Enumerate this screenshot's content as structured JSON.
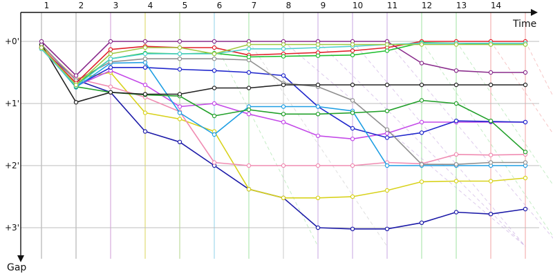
{
  "chart_data": {
    "type": "line",
    "xlabel": "Time",
    "ylabel": "Gap",
    "x_ticks": [
      "1",
      "2",
      "3",
      "4",
      "5",
      "6",
      "7",
      "8",
      "9",
      "10",
      "11",
      "12",
      "13",
      "14"
    ],
    "y_ticks": [
      "+0'",
      "+1'",
      "+2'",
      "+3'"
    ],
    "xlim": [
      0.3,
      15.2
    ],
    "ylim": [
      0,
      3.5
    ],
    "grid": true,
    "series": [
      {
        "color": "#1c1aa8",
        "x": [
          1,
          2,
          3,
          4,
          5,
          6,
          7,
          8,
          9,
          10,
          11,
          12,
          13,
          14,
          15
        ],
        "y": [
          0.1,
          0.62,
          0.82,
          1.45,
          1.62,
          2.0,
          2.38,
          2.52,
          3.0,
          3.02,
          3.02,
          2.92,
          2.75,
          2.78,
          2.7
        ]
      },
      {
        "color": "#d8d21c",
        "x": [
          1,
          2,
          3,
          4,
          5,
          6,
          7,
          8,
          9,
          10,
          11,
          12,
          13,
          14,
          15
        ],
        "y": [
          0.08,
          0.6,
          0.5,
          1.15,
          1.25,
          1.45,
          2.38,
          2.52,
          2.52,
          2.5,
          2.4,
          2.26,
          2.25,
          2.25,
          2.2
        ]
      },
      {
        "color": "#f08cb2",
        "x": [
          1,
          2,
          3,
          4,
          5,
          6,
          7,
          8,
          9,
          10,
          11,
          12,
          13,
          14,
          15
        ],
        "y": [
          0.1,
          0.6,
          0.73,
          0.9,
          1.13,
          1.95,
          2.0,
          2.0,
          2.0,
          2.0,
          1.95,
          1.97,
          1.82,
          1.83,
          1.82
        ]
      },
      {
        "color": "#c44ae8",
        "x": [
          1,
          2,
          3,
          4,
          5,
          6,
          7,
          8,
          9,
          10,
          11,
          12,
          13,
          14,
          15
        ],
        "y": [
          0.12,
          0.72,
          0.47,
          0.7,
          1.05,
          1.0,
          1.17,
          1.3,
          1.52,
          1.57,
          1.48,
          1.3,
          1.3,
          1.3,
          1.3
        ]
      },
      {
        "color": "#2027cc",
        "x": [
          1,
          2,
          3,
          4,
          5,
          6,
          7,
          8,
          9,
          10,
          11,
          12,
          13,
          14,
          15
        ],
        "y": [
          0.12,
          0.72,
          0.42,
          0.42,
          0.45,
          0.47,
          0.5,
          0.55,
          1.05,
          1.4,
          1.55,
          1.47,
          1.28,
          1.29,
          1.3
        ]
      },
      {
        "color": "#1e9ee3",
        "x": [
          1,
          2,
          3,
          4,
          5,
          6,
          7,
          8,
          9,
          10,
          11,
          12,
          13,
          14,
          15
        ],
        "y": [
          0.1,
          0.74,
          0.35,
          0.34,
          1.15,
          1.5,
          1.05,
          1.05,
          1.05,
          1.12,
          2.0,
          2.0,
          2.0,
          2.0,
          2.0
        ]
      },
      {
        "color": "#8f8f8f",
        "x": [
          1,
          2,
          3,
          4,
          5,
          6,
          7,
          8,
          9,
          10,
          11,
          12,
          13,
          14,
          15
        ],
        "y": [
          0.05,
          0.63,
          0.33,
          0.28,
          0.28,
          0.28,
          0.3,
          0.67,
          0.73,
          0.95,
          1.42,
          1.98,
          1.98,
          1.95,
          1.95
        ]
      },
      {
        "color": "#22a02a",
        "x": [
          1,
          2,
          3,
          4,
          5,
          6,
          7,
          8,
          9,
          10,
          11,
          12,
          13,
          14,
          15
        ],
        "y": [
          0.1,
          0.73,
          0.82,
          0.86,
          0.88,
          1.2,
          1.1,
          1.17,
          1.17,
          1.15,
          1.12,
          0.95,
          1.0,
          1.28,
          1.78
        ]
      },
      {
        "color": "#222222",
        "x": [
          1,
          2,
          3,
          4,
          5,
          6,
          7,
          8,
          9,
          10,
          11,
          12,
          13,
          14,
          15
        ],
        "y": [
          0.05,
          0.98,
          0.82,
          0.85,
          0.85,
          0.75,
          0.75,
          0.7,
          0.7,
          0.7,
          0.7,
          0.7,
          0.7,
          0.7,
          0.7
        ]
      },
      {
        "color": "#8a2c8c",
        "x": [
          1,
          2,
          3,
          4,
          5,
          6,
          7,
          8,
          9,
          10,
          11,
          12,
          13,
          14,
          15
        ],
        "y": [
          0.0,
          0.55,
          0.0,
          0.0,
          0.0,
          0.0,
          0.0,
          0.0,
          0.0,
          0.0,
          0.0,
          0.35,
          0.47,
          0.5,
          0.5
        ]
      },
      {
        "color": "#e0202a",
        "x": [
          1,
          2,
          3,
          4,
          5,
          6,
          7,
          8,
          9,
          10,
          11,
          12,
          13,
          14,
          15
        ],
        "y": [
          0.1,
          0.67,
          0.13,
          0.08,
          0.1,
          0.1,
          0.22,
          0.2,
          0.18,
          0.15,
          0.1,
          0.0,
          0.0,
          0.0,
          0.0
        ]
      },
      {
        "color": "#1fbf2f",
        "x": [
          1,
          2,
          3,
          4,
          5,
          6,
          7,
          8,
          9,
          10,
          11,
          12,
          13,
          14,
          15
        ],
        "y": [
          0.12,
          0.7,
          0.28,
          0.19,
          0.2,
          0.19,
          0.25,
          0.24,
          0.23,
          0.22,
          0.15,
          0.02,
          0.03,
          0.05,
          0.05
        ]
      },
      {
        "color": "#4fcfcf",
        "x": [
          1,
          2,
          3,
          4,
          5,
          6,
          7,
          8,
          9,
          10,
          11,
          12,
          13,
          14,
          15
        ],
        "y": [
          0.12,
          0.72,
          0.28,
          0.2,
          0.2,
          0.2,
          0.12,
          0.12,
          0.1,
          0.08,
          0.05,
          0.03,
          0.03,
          0.03,
          0.03
        ]
      },
      {
        "color": "#a0c840",
        "x": [
          1,
          2,
          3,
          4,
          5,
          6,
          7,
          8,
          9,
          10,
          11,
          12,
          13,
          14,
          15
        ],
        "y": [
          0.1,
          0.7,
          0.2,
          0.1,
          0.1,
          0.2,
          0.05,
          0.05,
          0.05,
          0.05,
          0.05,
          0.05,
          0.05,
          0.05,
          0.05
        ]
      }
    ]
  }
}
